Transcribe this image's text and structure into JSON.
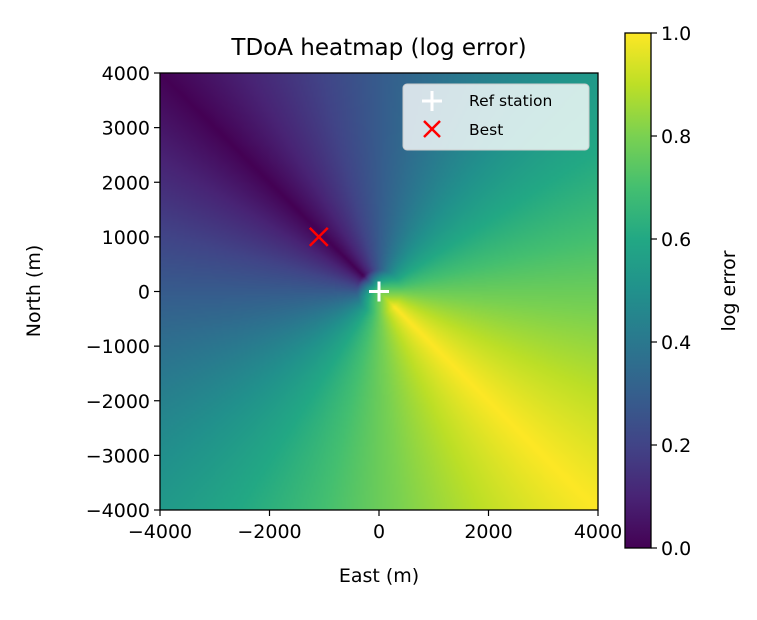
{
  "chart_data": {
    "type": "heatmap",
    "title": "TDoA heatmap (log error)",
    "xlabel": "East (m)",
    "ylabel": "North (m)",
    "xlim": [
      -4000,
      4000
    ],
    "ylim": [
      -4000,
      4000
    ],
    "xticks": [
      -4000,
      -2000,
      0,
      2000,
      4000
    ],
    "yticks": [
      -4000,
      -3000,
      -2000,
      -1000,
      0,
      1000,
      2000,
      3000,
      4000
    ],
    "xtick_labels": [
      "−4000",
      "−2000",
      "0",
      "2000",
      "4000"
    ],
    "ytick_labels": [
      "4000",
      "3000",
      "2000",
      "1000",
      "0",
      "−1000",
      "−2000",
      "−3000",
      "−4000"
    ],
    "colormap": "viridis",
    "colorbar": {
      "label": "log error",
      "range": [
        0.0,
        1.0
      ],
      "ticks": [
        0.0,
        0.2,
        0.4,
        0.6,
        0.8,
        1.0
      ],
      "tick_labels": [
        "0.0",
        "0.2",
        "0.4",
        "0.6",
        "0.8",
        "1.0"
      ]
    },
    "field": {
      "description_of_values": "approximate log error by direction from reference station",
      "minimum_direction_deg": 135,
      "maximum_direction_deg": -45
    },
    "markers": [
      {
        "name": "Ref station",
        "x": 0,
        "y": 0,
        "symbol": "plus",
        "color": "#ffffff"
      },
      {
        "name": "Best",
        "x": -1100,
        "y": 1000,
        "symbol": "x",
        "color": "#ff0000"
      }
    ],
    "legend": {
      "placement": "upper right",
      "entries": [
        "Ref station",
        "Best"
      ]
    },
    "grid": false
  }
}
